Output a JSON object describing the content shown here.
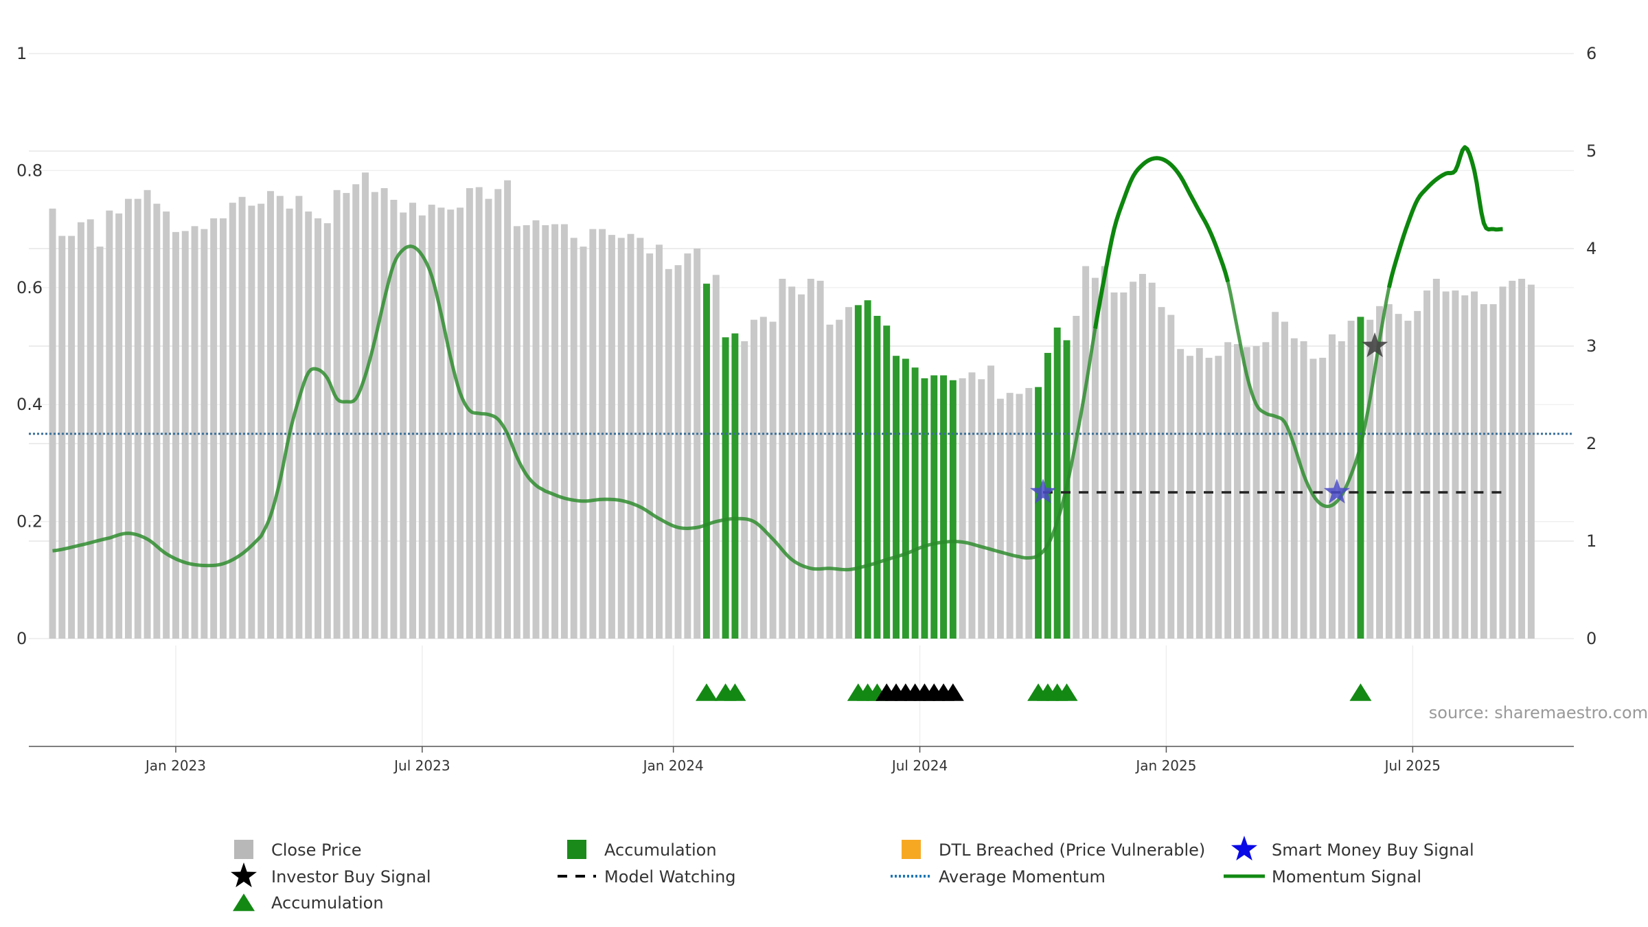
{
  "chart_data": {
    "type": "bar",
    "title": "",
    "source": "source: sharemaestro.com",
    "y_left": {
      "min": 0,
      "max": 1,
      "ticks": [
        "0",
        "0.2",
        "0.4",
        "0.6",
        "0.8",
        "1"
      ]
    },
    "y_right": {
      "min": 0,
      "max": 6,
      "ticks": [
        "0",
        "1",
        "2",
        "3",
        "4",
        "5",
        "6"
      ]
    },
    "x_ticks": [
      "Jan 2023",
      "Jul 2023",
      "Jan 2024",
      "Jul 2024",
      "Jan 2025",
      "Jul 2025"
    ],
    "x_tick_weeks": [
      13,
      39,
      65.5,
      91.5,
      117.5,
      143.5
    ],
    "week_range": [
      -2.5,
      160.5
    ],
    "close_price": [
      4.41,
      4.13,
      4.13,
      4.27,
      4.3,
      4.02,
      4.39,
      4.36,
      4.51,
      4.51,
      4.6,
      4.46,
      4.38,
      4.17,
      4.18,
      4.23,
      4.2,
      4.31,
      4.31,
      4.47,
      4.53,
      4.44,
      4.46,
      4.59,
      4.54,
      4.41,
      4.54,
      4.38,
      4.31,
      4.26,
      4.6,
      4.57,
      4.66,
      4.78,
      4.58,
      4.62,
      4.5,
      4.37,
      4.47,
      4.34,
      4.45,
      4.42,
      4.4,
      4.42,
      4.62,
      4.63,
      4.51,
      4.61,
      4.7,
      4.23,
      4.24,
      4.29,
      4.24,
      4.25,
      4.25,
      4.11,
      4.02,
      4.2,
      4.2,
      4.14,
      4.11,
      4.15,
      4.11,
      3.95,
      4.04,
      3.79,
      3.83,
      3.95,
      4.0,
      3.64,
      3.73,
      3.09,
      3.13,
      3.05,
      3.27,
      3.3,
      3.25,
      3.69,
      3.61,
      3.53,
      3.69,
      3.67,
      3.22,
      3.27,
      3.4,
      3.42,
      3.47,
      3.31,
      3.21,
      2.9,
      2.87,
      2.78,
      2.67,
      2.7,
      2.7,
      2.65,
      2.67,
      2.73,
      2.66,
      2.8,
      2.46,
      2.52,
      2.51,
      2.57,
      2.58,
      2.93,
      3.19,
      3.06,
      3.31,
      3.82,
      3.7,
      3.82,
      3.55,
      3.55,
      3.66,
      3.74,
      3.65,
      3.4,
      3.32,
      2.97,
      2.9,
      2.98,
      2.88,
      2.9,
      3.04,
      3.02,
      2.99,
      3.0,
      3.04,
      3.35,
      3.25,
      3.08,
      3.05,
      2.87,
      2.88,
      3.12,
      3.05,
      3.26,
      3.3,
      3.27,
      3.41,
      3.43,
      3.33,
      3.26,
      3.36,
      3.57,
      3.69,
      3.56,
      3.57,
      3.52,
      3.56,
      3.43,
      3.43,
      3.61,
      3.67,
      3.69,
      3.63
    ],
    "accumulation_weeks": [
      69,
      71,
      72,
      85,
      86,
      87,
      88,
      89,
      90,
      91,
      92,
      93,
      94,
      95,
      104,
      105,
      106,
      107,
      138
    ],
    "accumulation_triangle_weeks": [
      69,
      71,
      72,
      85,
      86,
      87,
      104,
      105,
      106,
      107,
      138
    ],
    "investor_triangle_weeks": [
      88,
      89,
      90,
      91,
      92,
      93,
      94,
      95
    ],
    "momentum_signal": {
      "knots": [
        [
          0,
          0.15
        ],
        [
          3,
          0.16
        ],
        [
          6,
          0.172
        ],
        [
          8,
          0.18
        ],
        [
          10,
          0.17
        ],
        [
          12,
          0.145
        ],
        [
          14,
          0.13
        ],
        [
          16,
          0.125
        ],
        [
          18,
          0.128
        ],
        [
          20,
          0.145
        ],
        [
          22,
          0.175
        ],
        [
          23,
          0.21
        ],
        [
          24,
          0.27
        ],
        [
          25,
          0.35
        ],
        [
          26,
          0.41
        ],
        [
          27,
          0.455
        ],
        [
          28,
          0.46
        ],
        [
          29,
          0.445
        ],
        [
          30,
          0.41
        ],
        [
          31,
          0.405
        ],
        [
          32,
          0.41
        ],
        [
          33,
          0.45
        ],
        [
          34,
          0.51
        ],
        [
          35,
          0.58
        ],
        [
          36,
          0.64
        ],
        [
          37,
          0.665
        ],
        [
          38,
          0.67
        ],
        [
          39,
          0.655
        ],
        [
          40,
          0.62
        ],
        [
          41,
          0.555
        ],
        [
          42,
          0.48
        ],
        [
          43,
          0.42
        ],
        [
          44,
          0.39
        ],
        [
          45,
          0.385
        ],
        [
          46,
          0.383
        ],
        [
          47,
          0.375
        ],
        [
          48,
          0.35
        ],
        [
          49,
          0.31
        ],
        [
          50,
          0.28
        ],
        [
          51,
          0.262
        ],
        [
          52,
          0.252
        ],
        [
          54,
          0.24
        ],
        [
          56,
          0.235
        ],
        [
          58,
          0.238
        ],
        [
          60,
          0.236
        ],
        [
          62,
          0.225
        ],
        [
          64,
          0.205
        ],
        [
          66,
          0.19
        ],
        [
          68,
          0.19
        ],
        [
          70,
          0.2
        ],
        [
          72,
          0.205
        ],
        [
          74,
          0.2
        ],
        [
          76,
          0.17
        ],
        [
          78,
          0.135
        ],
        [
          80,
          0.12
        ],
        [
          82,
          0.12
        ],
        [
          84,
          0.118
        ],
        [
          86,
          0.125
        ],
        [
          88,
          0.135
        ],
        [
          90,
          0.145
        ],
        [
          92,
          0.158
        ],
        [
          94,
          0.165
        ],
        [
          96,
          0.165
        ],
        [
          98,
          0.157
        ],
        [
          100,
          0.148
        ],
        [
          102,
          0.14
        ],
        [
          103,
          0.138
        ],
        [
          104,
          0.142
        ],
        [
          105,
          0.16
        ],
        [
          106,
          0.2
        ],
        [
          107,
          0.26
        ],
        [
          108,
          0.34
        ],
        [
          109,
          0.43
        ],
        [
          110,
          0.53
        ],
        [
          111,
          0.62
        ],
        [
          112,
          0.7
        ],
        [
          113,
          0.75
        ],
        [
          114,
          0.79
        ],
        [
          115,
          0.81
        ],
        [
          116,
          0.82
        ],
        [
          117,
          0.82
        ],
        [
          118,
          0.81
        ],
        [
          119,
          0.79
        ],
        [
          120,
          0.76
        ],
        [
          121,
          0.73
        ],
        [
          122,
          0.7
        ],
        [
          123,
          0.66
        ],
        [
          124,
          0.61
        ],
        [
          125,
          0.53
        ],
        [
          126,
          0.45
        ],
        [
          127,
          0.4
        ],
        [
          128,
          0.385
        ],
        [
          129,
          0.38
        ],
        [
          130,
          0.37
        ],
        [
          131,
          0.33
        ],
        [
          132,
          0.28
        ],
        [
          133,
          0.245
        ],
        [
          134,
          0.228
        ],
        [
          135,
          0.228
        ],
        [
          136,
          0.245
        ],
        [
          137,
          0.28
        ],
        [
          138,
          0.33
        ],
        [
          139,
          0.41
        ],
        [
          140,
          0.51
        ],
        [
          141,
          0.6
        ],
        [
          142,
          0.66
        ],
        [
          143,
          0.71
        ],
        [
          144,
          0.75
        ],
        [
          145,
          0.77
        ],
        [
          146,
          0.785
        ],
        [
          147,
          0.795
        ],
        [
          148,
          0.8
        ],
        [
          149,
          0.84
        ],
        [
          150,
          0.8
        ],
        [
          151,
          0.71
        ],
        [
          152,
          0.7
        ],
        [
          153,
          0.7
        ]
      ],
      "strong_segments": [
        [
          110,
          124
        ],
        [
          141,
          153
        ]
      ]
    },
    "average_momentum": 0.35,
    "model_watching": {
      "level": 0.25,
      "segments": [
        [
          104.5,
          132.5
        ],
        [
          133,
          153
        ]
      ]
    },
    "smart_money_buy_signals": [
      {
        "week": 104.5,
        "value": 0.25
      },
      {
        "week": 135.5,
        "value": 0.25
      }
    ],
    "investor_buy_signals": [
      {
        "week": 139.5,
        "value": 0.5
      }
    ],
    "colors": {
      "close_price": "#c8c8c8",
      "accumulation": "#2d9a2d",
      "accumulation_triangle": "#138913",
      "investor_triangle": "#000000",
      "momentum": "#2a8a2a",
      "momentum_strong": "#0d860d",
      "average_momentum": "#3a6f99",
      "model_watching": "#222222",
      "smart_money_star": "#4b4bc8",
      "investor_star": "#444444",
      "dtl_breached": "#f7a823"
    },
    "legend": [
      {
        "label": "Close Price",
        "symbol": "square",
        "color": "#b8b8b8"
      },
      {
        "label": "Accumulation",
        "symbol": "square",
        "color": "#1a8a1a"
      },
      {
        "label": "DTL Breached (Price Vulnerable)",
        "symbol": "square",
        "color": "#f7a823"
      },
      {
        "label": "Smart Money Buy Signal",
        "symbol": "star",
        "color": "#0a0ae6"
      },
      {
        "label": "Investor Buy Signal",
        "symbol": "star",
        "color": "#000000"
      },
      {
        "label": "Model Watching",
        "symbol": "dash",
        "color": "#000000"
      },
      {
        "label": "Average Momentum",
        "symbol": "dot",
        "color": "#1f77b4"
      },
      {
        "label": "Momentum Signal",
        "symbol": "line",
        "color": "#138913"
      },
      {
        "label": "Accumulation",
        "symbol": "triangle",
        "color": "#138913"
      }
    ]
  }
}
